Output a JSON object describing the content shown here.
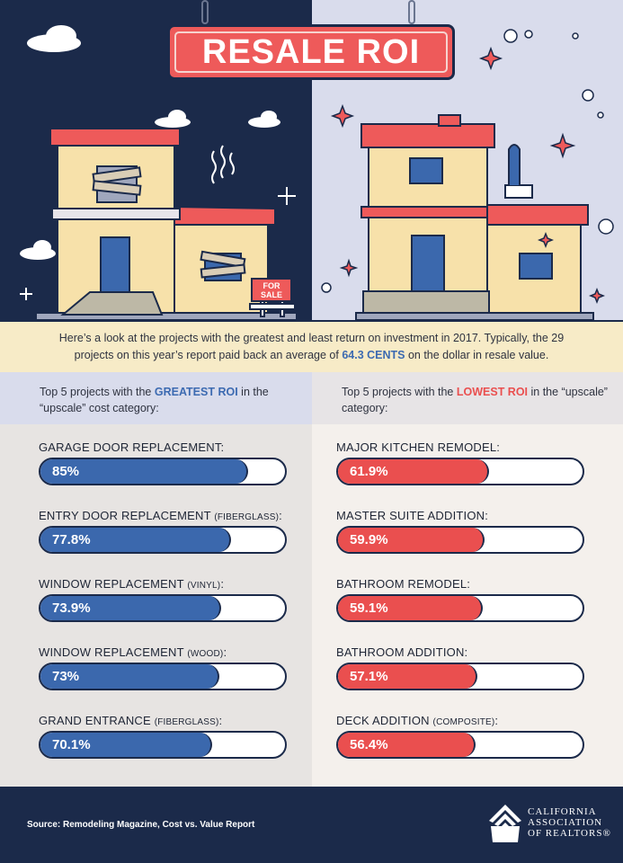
{
  "title": "RESALE ROI",
  "for_sale_sign": "FOR SALE",
  "intro": {
    "text_before": "Here’s a look at the projects with the greatest and least return on investment in 2017. Typically, the 29 projects on this year’s report paid back an average of ",
    "highlight": "64.3 CENTS",
    "text_after": " on the dollar in resale value."
  },
  "left_header": {
    "before": "Top 5 projects with the ",
    "highlight": "GREATEST ROI",
    "after": " in the “upscale” cost category:"
  },
  "right_header": {
    "before": "Top 5 projects with the ",
    "highlight": "LOWEST ROI",
    "after": " in the “upscale” category:"
  },
  "chart_data": [
    {
      "type": "bar",
      "orientation": "horizontal",
      "categories": [
        "GARAGE DOOR REPLACEMENT:",
        "ENTRY DOOR REPLACEMENT (FIBERGLASS):",
        "WINDOW REPLACEMENT (VINYL):",
        "WINDOW REPLACEMENT (WOOD):",
        "GRAND ENTRANCE (FIBERGLASS):"
      ],
      "label_main": [
        "GARAGE DOOR REPLACEMENT:",
        "ENTRY DOOR REPLACEMENT ",
        "WINDOW REPLACEMENT ",
        "WINDOW REPLACEMENT ",
        "GRAND ENTRANCE "
      ],
      "label_small": [
        "",
        "(FIBERGLASS)",
        "(VINYL)",
        "(WOOD)",
        "(FIBERGLASS)"
      ],
      "label_suffix": [
        "",
        ":",
        ":",
        ":",
        ":"
      ],
      "values": [
        85,
        77.8,
        73.9,
        73,
        70.1
      ],
      "value_labels": [
        "85%",
        "77.8%",
        "73.9%",
        "73%",
        "70.1%"
      ],
      "xlim": [
        0,
        100
      ],
      "color": "#3b68ad"
    },
    {
      "type": "bar",
      "orientation": "horizontal",
      "categories": [
        "MAJOR KITCHEN REMODEL:",
        "MASTER SUITE ADDITION:",
        "BATHROOM REMODEL:",
        "BATHROOM ADDITION:",
        "DECK ADDITION (COMPOSITE):"
      ],
      "label_main": [
        "MAJOR KITCHEN REMODEL:",
        "MASTER SUITE ADDITION:",
        "BATHROOM REMODEL:",
        "BATHROOM ADDITION:",
        "DECK ADDITION "
      ],
      "label_small": [
        "",
        "",
        "",
        "",
        "(COMPOSITE)"
      ],
      "label_suffix": [
        "",
        "",
        "",
        "",
        ":"
      ],
      "values": [
        61.9,
        59.9,
        59.1,
        57.1,
        56.4
      ],
      "value_labels": [
        "61.9%",
        "59.9%",
        "59.1%",
        "57.1%",
        "56.4%"
      ],
      "xlim": [
        0,
        100
      ],
      "color": "#ea4f4f"
    }
  ],
  "footer": {
    "source": "Source: Remodeling Magazine, Cost vs. Value Report",
    "org_line1": "CALIFORNIA",
    "org_line2": "ASSOCIATION",
    "org_line3": "OF REALTORS®"
  }
}
